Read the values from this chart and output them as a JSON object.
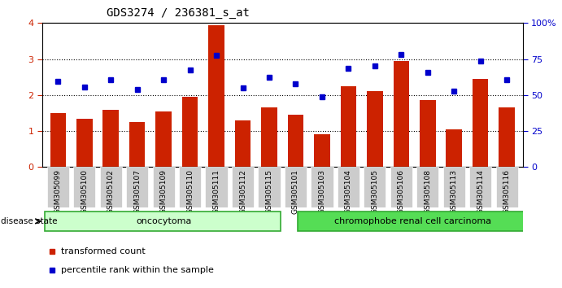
{
  "title": "GDS3274 / 236381_s_at",
  "samples": [
    "GSM305099",
    "GSM305100",
    "GSM305102",
    "GSM305107",
    "GSM305109",
    "GSM305110",
    "GSM305111",
    "GSM305112",
    "GSM305115",
    "GSM305101",
    "GSM305103",
    "GSM305104",
    "GSM305105",
    "GSM305106",
    "GSM305108",
    "GSM305113",
    "GSM305114",
    "GSM305116"
  ],
  "bar_values": [
    1.5,
    1.35,
    1.6,
    1.25,
    1.55,
    1.95,
    3.95,
    1.3,
    1.65,
    1.45,
    0.9,
    2.25,
    2.1,
    2.95,
    1.85,
    1.05,
    2.45,
    1.65
  ],
  "dot_values": [
    59.5,
    55.5,
    60.5,
    54.0,
    60.5,
    67.5,
    77.5,
    55.0,
    62.5,
    58.0,
    49.0,
    68.5,
    70.0,
    78.0,
    65.5,
    52.5,
    73.5,
    60.5
  ],
  "bar_color": "#CC2200",
  "dot_color": "#0000CC",
  "ylim_left": [
    0,
    4
  ],
  "ylim_right": [
    0,
    100
  ],
  "yticks_left": [
    0,
    1,
    2,
    3,
    4
  ],
  "yticks_right": [
    0,
    25,
    50,
    75,
    100
  ],
  "group1_count": 9,
  "group1_label": "oncocytoma",
  "group2_label": "chromophobe renal cell carcinoma",
  "group1_color": "#CCFFCC",
  "group2_color": "#55DD55",
  "legend_bar": "transformed count",
  "legend_dot": "percentile rank within the sample",
  "disease_state_label": "disease state",
  "title_fontsize": 10,
  "tick_label_fontsize": 6.5
}
